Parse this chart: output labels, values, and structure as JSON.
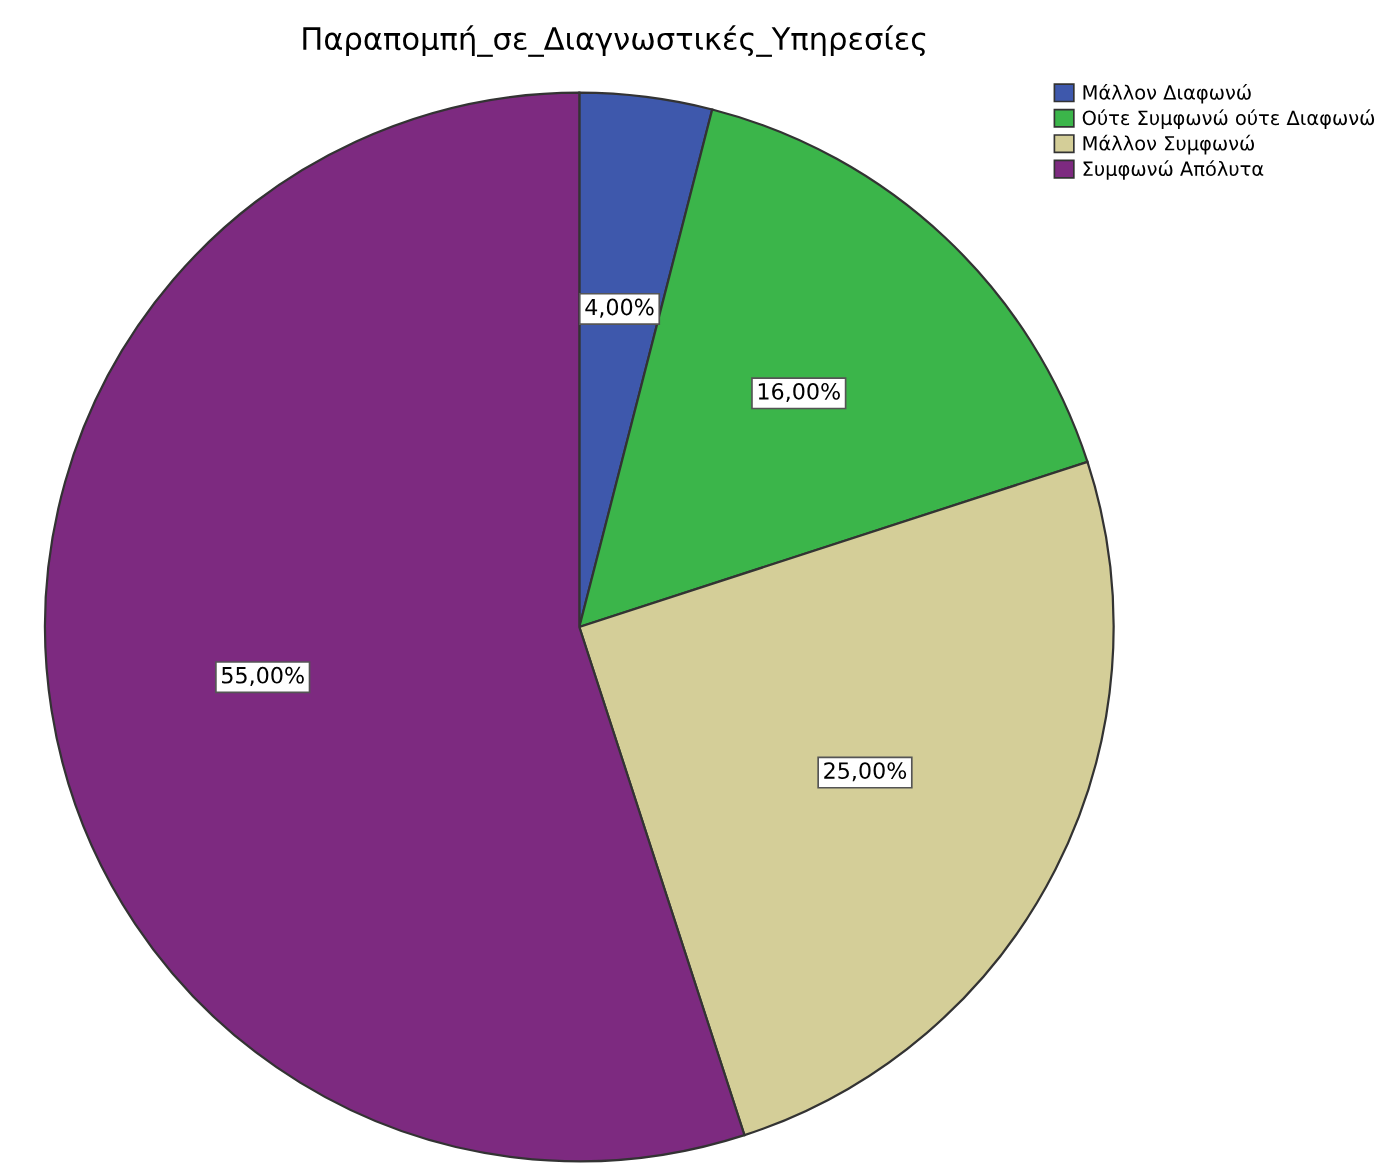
{
  "chart_data": {
    "type": "pie",
    "title": "Παραπομπή_σε_Διαγνωστικές_Υπηρεσίες",
    "categories": [
      "Μάλλον Διαφωνώ",
      "Ούτε Συμφωνώ ούτε Διαφωνώ",
      "Μάλλον Συμφωνώ",
      "Συμφωνώ Απόλυτα"
    ],
    "values": [
      4,
      16,
      25,
      55
    ],
    "value_labels": [
      "4,00%",
      "16,00%",
      "25,00%",
      "55,00%"
    ],
    "colors": [
      "#3e58ac",
      "#3bb54a",
      "#d4ce98",
      "#7d2a80"
    ],
    "legend": "top right"
  }
}
